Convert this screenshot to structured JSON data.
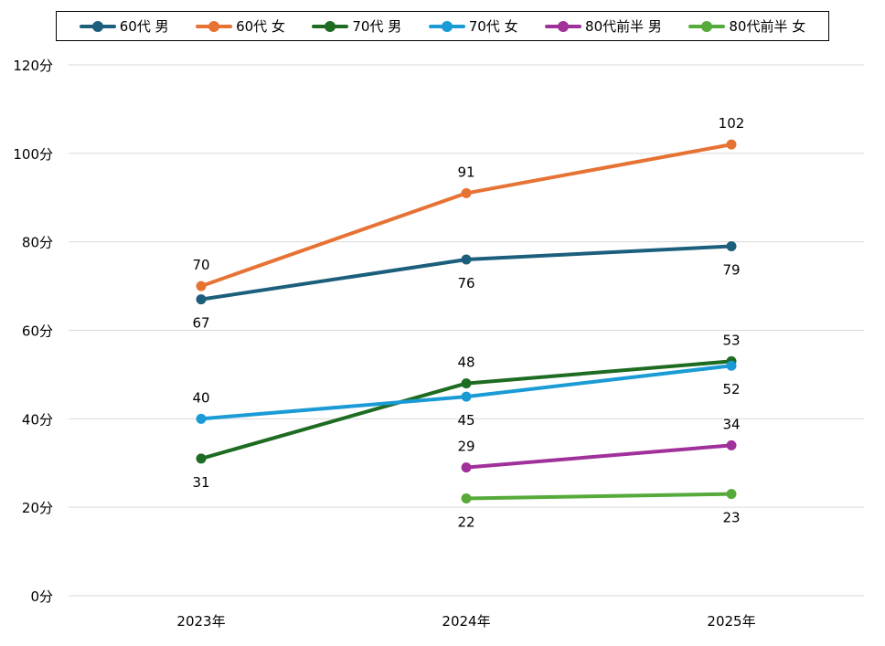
{
  "chart_data": {
    "type": "line",
    "categories": [
      "2023年",
      "2024年",
      "2025年"
    ],
    "y_tick_labels": [
      "0分",
      "20分",
      "40分",
      "60分",
      "80分",
      "100分",
      "120分"
    ],
    "ylim": [
      0,
      120
    ],
    "grid": true,
    "legend_position": "top",
    "series": [
      {
        "name": "60代 男",
        "color": "#1c5f7c",
        "values": [
          67,
          76,
          79
        ],
        "label_pos": [
          "below",
          "below",
          "below"
        ]
      },
      {
        "name": "60代 女",
        "color": "#e67334",
        "values": [
          70,
          91,
          102
        ],
        "label_pos": [
          "above",
          "above",
          "above"
        ]
      },
      {
        "name": "70代 男",
        "color": "#1e6b22",
        "values": [
          31,
          48,
          53
        ],
        "label_pos": [
          "below",
          "above",
          "above"
        ]
      },
      {
        "name": "70代 女",
        "color": "#1a9bd5",
        "values": [
          40,
          45,
          52
        ],
        "label_pos": [
          "above",
          "below",
          "below"
        ]
      },
      {
        "name": "80代前半 男",
        "color": "#a0309a",
        "values": [
          null,
          29,
          34
        ],
        "label_pos": [
          null,
          "above",
          "above"
        ]
      },
      {
        "name": "80代前半 女",
        "color": "#56aa3a",
        "values": [
          null,
          22,
          23
        ],
        "label_pos": [
          null,
          "below",
          "below"
        ]
      }
    ]
  }
}
